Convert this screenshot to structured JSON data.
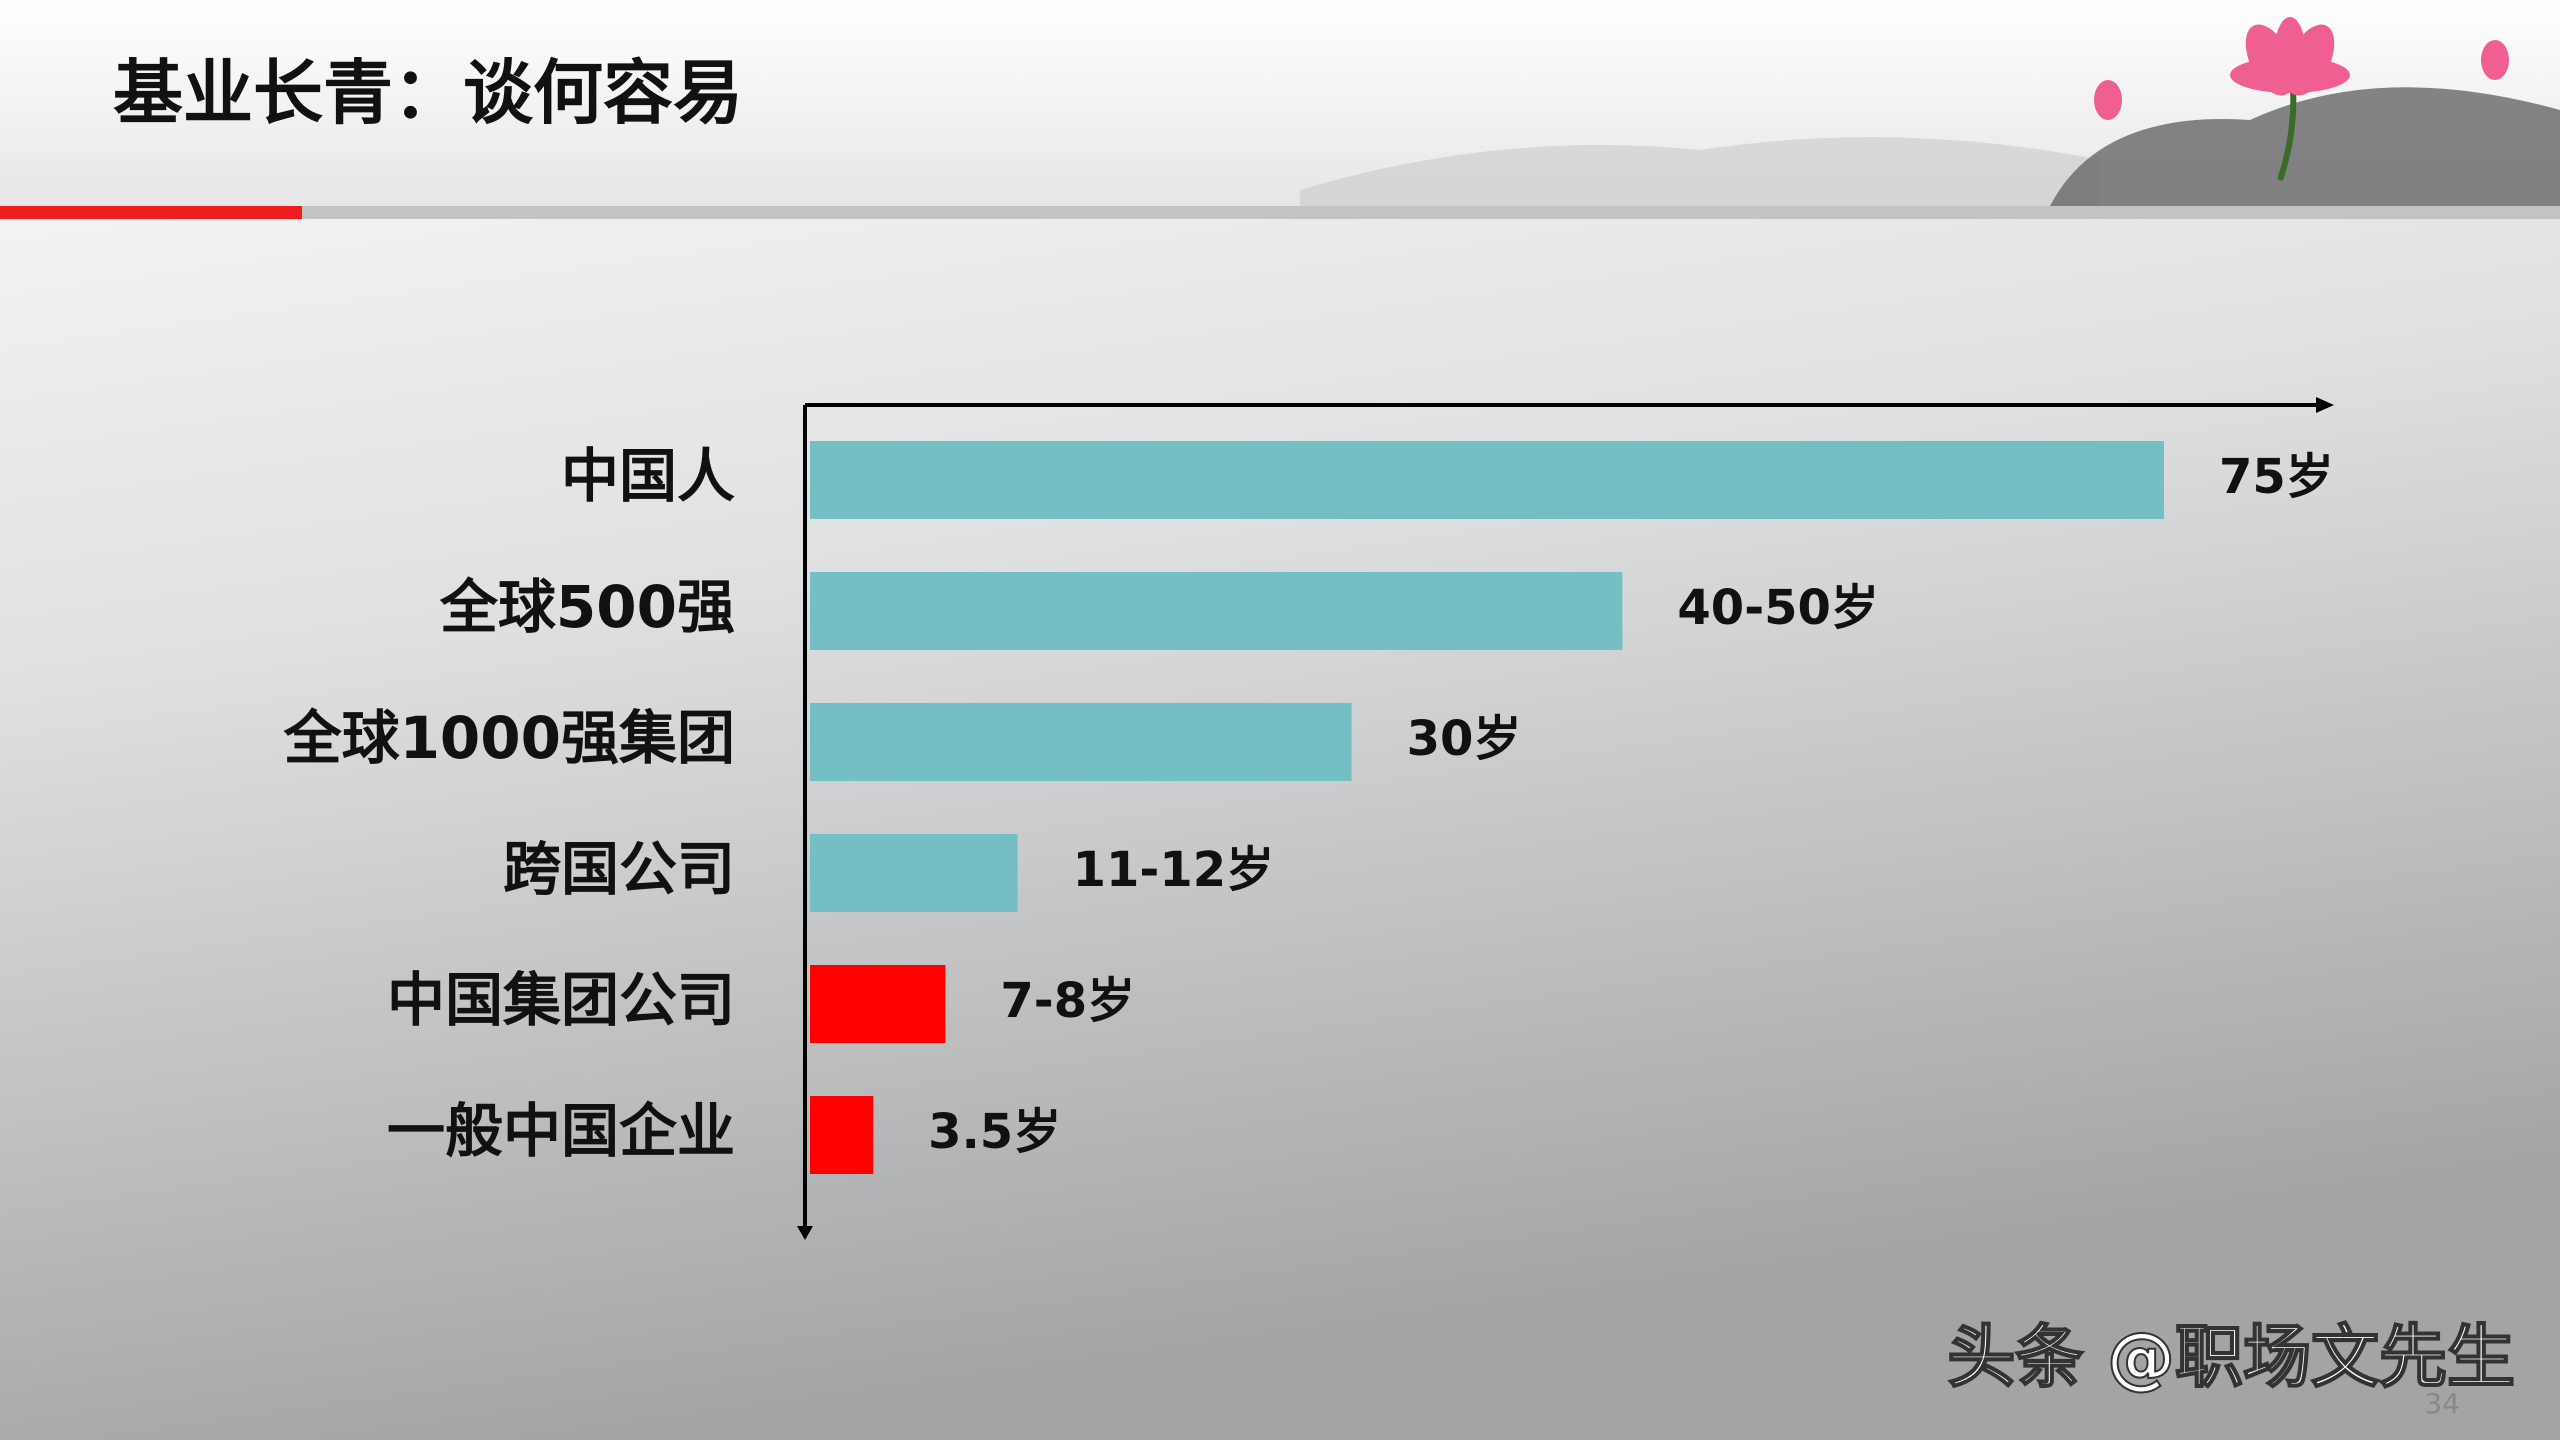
{
  "chart_data": {
    "type": "barh",
    "title": "基业长青：谈何容易",
    "categories": [
      "中国人",
      "全球500强",
      "全球1000强集团",
      "跨国公司",
      "中国集团公司",
      "一般中国企业"
    ],
    "values": [
      75,
      45,
      30,
      11.5,
      7.5,
      3.5
    ],
    "value_labels": [
      "75岁",
      "40-50岁",
      "30岁",
      "11-12岁",
      "7-8岁",
      "3.5岁"
    ],
    "colors": [
      "#73bfc3",
      "#73bfc3",
      "#73bfc3",
      "#73bfc3",
      "#ff0000",
      "#ff0000"
    ]
  },
  "watermark": "头条 @职场文先生",
  "page_number": "34"
}
